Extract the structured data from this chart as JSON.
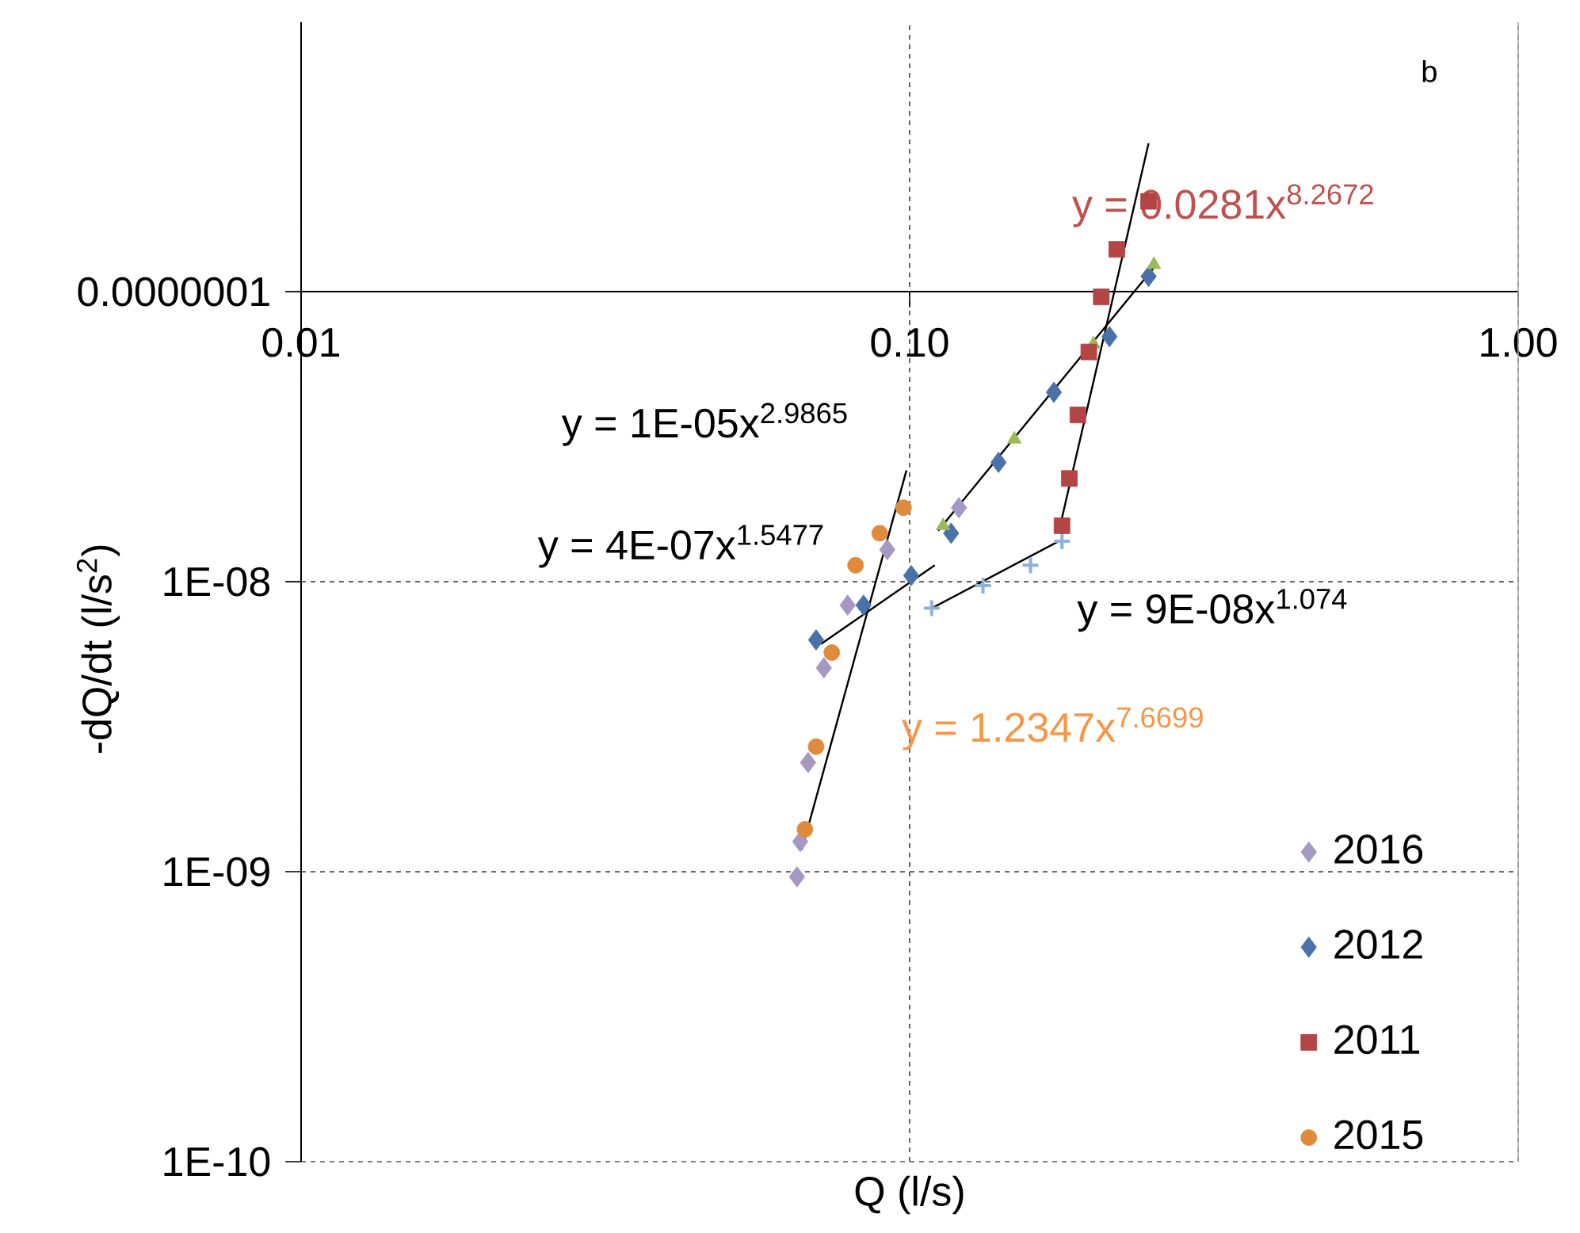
{
  "chart_data": {
    "type": "scatter",
    "xlabel": "Q (l/s)",
    "ylabel": "-dQ/dt (l/s$^{2}$)",
    "log": "xy",
    "grid": true,
    "legend": "bottom right",
    "xlim": [
      0.01,
      1
    ],
    "ylim": [
      1e-10,
      8.5e-07
    ],
    "xticks": [
      {
        "value": 0.01,
        "label": "0.01"
      },
      {
        "value": 0.1,
        "label": "0.10"
      },
      {
        "value": 1,
        "label": "1.00"
      }
    ],
    "yticks": [
      {
        "value": 1e-10,
        "label": "1E-10"
      },
      {
        "value": 1e-09,
        "label": "1E-09"
      },
      {
        "value": 1e-08,
        "label": "1E-08"
      },
      {
        "value": 1e-07,
        "label": "0.0000001"
      }
    ],
    "series": [
      {
        "name": "2016",
        "color": "#a598c1",
        "marker": "diamond",
        "x": [
          0.0653,
          0.0661,
          0.0681,
          0.0723,
          0.0791,
          0.0919,
          0.1205
        ],
        "values": [
          9.6e-10,
          1.27e-09,
          2.38e-09,
          5.05e-09,
          8.3e-09,
          1.29e-08,
          1.8e-08
        ]
      },
      {
        "name": "2012",
        "color": "#4a72a8",
        "marker": "diamond",
        "x": [
          0.0702,
          0.084,
          0.1006,
          0.117,
          0.14,
          0.1726,
          0.213,
          0.247
        ],
        "values": [
          6.3e-09,
          8.3e-09,
          1.05e-08,
          1.47e-08,
          2.58e-08,
          4.5e-08,
          7e-08,
          1.13e-07
        ]
      },
      {
        "color": "#9bbb59",
        "marker": "triangle",
        "x": [
          0.1135,
          0.1486,
          0.2005,
          0.252
        ],
        "values": [
          1.56e-08,
          3.1e-08,
          6.6e-08,
          1.24e-07
        ]
      },
      {
        "color": "#8fb0d8",
        "marker": "cross",
        "x": [
          0.1087,
          0.132,
          0.158,
          0.178
        ],
        "values": [
          8.1e-09,
          9.7e-09,
          1.14e-08,
          1.38e-08
        ]
      },
      {
        "name": "2011",
        "color": "#b34545",
        "marker": "square",
        "x": [
          0.178,
          0.183,
          0.189,
          0.197,
          0.2065,
          0.219,
          0.247
        ],
        "values": [
          1.56e-08,
          2.27e-08,
          3.76e-08,
          6.2e-08,
          9.6e-08,
          1.4e-07,
          2.05e-07
        ]
      },
      {
        "name": "2015",
        "color": "#e08a3c",
        "marker": "circle",
        "x": [
          0.0673,
          0.0702,
          0.0745,
          0.0815,
          0.0893,
          0.0977
        ],
        "values": [
          1.4e-09,
          2.7e-09,
          5.7e-09,
          1.14e-08,
          1.47e-08,
          1.8e-08
        ]
      },
      {
        "type": "line",
        "color": "#000000",
        "marker": "none",
        "x": [
          0.1114,
          0.252
        ],
        "values": [
          1.5e-08,
          1.21e-07
        ]
      },
      {
        "type": "line",
        "color": "#000000",
        "marker": "none",
        "x": [
          0.0715,
          0.11
        ],
        "values": [
          6.1e-09,
          1.14e-08
        ]
      },
      {
        "type": "line",
        "color": "#000000",
        "marker": "none",
        "x": [
          0.176,
          0.247
        ],
        "values": [
          1.5e-08,
          3.25e-07
        ]
      },
      {
        "type": "line",
        "color": "#000000",
        "marker": "none",
        "x": [
          0.1087,
          0.176
        ],
        "values": [
          8.1e-09,
          1.38e-08
        ]
      },
      {
        "type": "line",
        "color": "#000000",
        "marker": "none",
        "x": [
          0.0665,
          0.0988
        ],
        "values": [
          1.19e-09,
          2.42e-08
        ]
      }
    ],
    "annotations": [
      "y = 0.0281x$^{8.2672}$",
      "y = 1E-05x$^{2.9865}$",
      "y = 4E-07x$^{1.5477}$",
      "y = 9E-08x$^{1.074}$",
      "y = 1.2347x$^{7.6699}$",
      "b"
    ]
  }
}
